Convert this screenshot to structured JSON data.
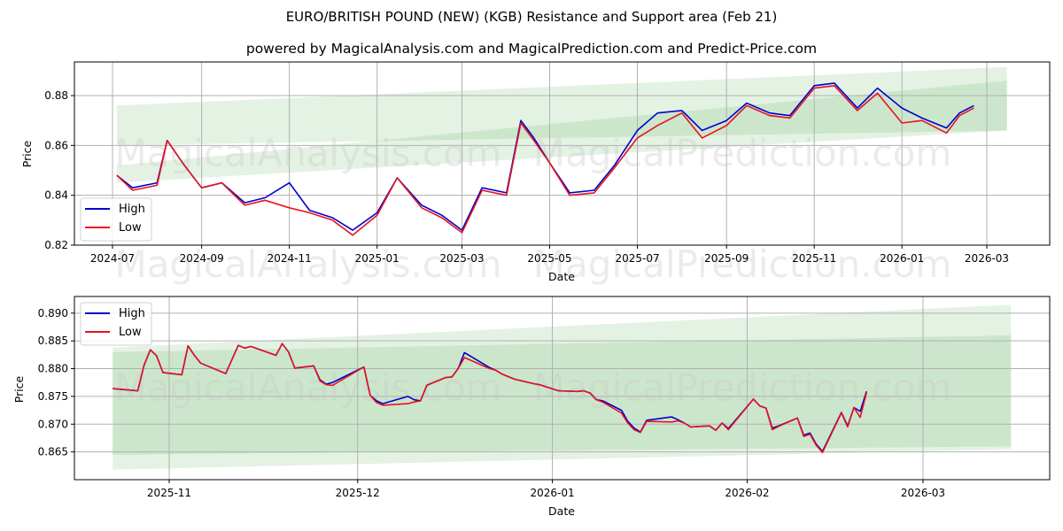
{
  "header": {
    "title": "EURO/BRITISH POUND (NEW) (KGB) Resistance and Support area (Feb 21)",
    "subtitle": "powered by MagicalAnalysis.com and MagicalPrediction.com and Predict-Price.com"
  },
  "colors": {
    "high": "#0000cc",
    "low": "#e8121e",
    "band_light": "#e3f0e3",
    "band_dark": "#c8e3c8",
    "grid": "#b0b0b0"
  },
  "watermarks": [
    "MagicalAnalysis.com",
    "MagicalPrediction.com"
  ],
  "chart_data": [
    {
      "type": "line",
      "title": "",
      "xlabel": "Date",
      "ylabel": "Price",
      "ylim": [
        0.82,
        0.8935
      ],
      "yticks": [
        "0.82",
        "0.84",
        "0.86",
        "0.88"
      ],
      "xticks": [
        "2024-07",
        "2024-09",
        "2024-11",
        "2025-01",
        "2025-03",
        "2025-05",
        "2025-07",
        "2025-09",
        "2025-11",
        "2026-01",
        "2026-03"
      ],
      "grid": true,
      "legend": {
        "position": "lower left",
        "entries": [
          "High",
          "Low"
        ]
      },
      "bands": [
        {
          "name": "resistance",
          "x_start": "2024-07-04",
          "x_end": "2026-03-15",
          "top": [
            0.876,
            0.8915
          ],
          "bottom": [
            0.86,
            0.866
          ]
        },
        {
          "name": "support",
          "x_start": "2024-07-04",
          "x_end": "2026-03-15",
          "top": [
            0.852,
            0.886
          ],
          "bottom": [
            0.845,
            0.866
          ]
        }
      ],
      "x": [
        "2024-07-04",
        "2024-07-15",
        "2024-08-01",
        "2024-08-08",
        "2024-08-20",
        "2024-09-01",
        "2024-09-15",
        "2024-10-01",
        "2024-10-15",
        "2024-11-01",
        "2024-11-15",
        "2024-12-01",
        "2024-12-15",
        "2025-01-01",
        "2025-01-15",
        "2025-02-01",
        "2025-02-15",
        "2025-03-01",
        "2025-03-15",
        "2025-04-01",
        "2025-04-11",
        "2025-04-20",
        "2025-05-01",
        "2025-05-15",
        "2025-06-01",
        "2025-06-15",
        "2025-07-01",
        "2025-07-15",
        "2025-08-01",
        "2025-08-15",
        "2025-09-01",
        "2025-09-15",
        "2025-10-01",
        "2025-10-15",
        "2025-11-01",
        "2025-11-15",
        "2025-12-01",
        "2025-12-15",
        "2026-01-01",
        "2026-01-15",
        "2026-02-01",
        "2026-02-10",
        "2026-02-20"
      ],
      "series": [
        {
          "name": "High",
          "values": [
            0.848,
            0.843,
            0.845,
            0.862,
            0.852,
            0.843,
            0.845,
            0.837,
            0.839,
            0.845,
            0.834,
            0.831,
            0.826,
            0.833,
            0.847,
            0.836,
            0.832,
            0.826,
            0.843,
            0.841,
            0.87,
            0.863,
            0.853,
            0.841,
            0.842,
            0.852,
            0.866,
            0.873,
            0.874,
            0.866,
            0.87,
            0.877,
            0.873,
            0.872,
            0.884,
            0.885,
            0.875,
            0.883,
            0.875,
            0.871,
            0.867,
            0.873,
            0.876
          ]
        },
        {
          "name": "Low",
          "values": [
            0.848,
            0.842,
            0.844,
            0.862,
            0.852,
            0.843,
            0.845,
            0.836,
            0.838,
            0.835,
            0.833,
            0.83,
            0.824,
            0.832,
            0.847,
            0.835,
            0.831,
            0.825,
            0.842,
            0.84,
            0.869,
            0.862,
            0.853,
            0.84,
            0.841,
            0.851,
            0.863,
            0.868,
            0.873,
            0.863,
            0.868,
            0.876,
            0.872,
            0.871,
            0.883,
            0.884,
            0.874,
            0.881,
            0.869,
            0.87,
            0.865,
            0.872,
            0.875
          ]
        }
      ]
    },
    {
      "type": "line",
      "title": "",
      "xlabel": "Date",
      "ylabel": "Price",
      "ylim": [
        0.86,
        0.893
      ],
      "yticks": [
        "0.865",
        "0.870",
        "0.875",
        "0.880",
        "0.885",
        "0.890"
      ],
      "xticks": [
        "2025-11",
        "2025-12",
        "2026-01",
        "2026-02",
        "2026-03"
      ],
      "grid": true,
      "legend": {
        "position": "upper left",
        "entries": [
          "High",
          "Low"
        ]
      },
      "bands": [
        {
          "name": "resistance",
          "x_start": "2025-10-23",
          "x_end": "2026-03-15",
          "top": [
            0.8838,
            0.8915
          ],
          "bottom": [
            0.8618,
            0.8655
          ]
        },
        {
          "name": "support",
          "x_start": "2025-10-23",
          "x_end": "2026-03-15",
          "top": [
            0.883,
            0.886
          ],
          "bottom": [
            0.8645,
            0.866
          ]
        }
      ],
      "x": [
        "2025-10-23",
        "2025-10-27",
        "2025-10-28",
        "2025-10-29",
        "2025-10-30",
        "2025-10-31",
        "2025-11-03",
        "2025-11-04",
        "2025-11-05",
        "2025-11-06",
        "2025-11-10",
        "2025-11-12",
        "2025-11-13",
        "2025-11-14",
        "2025-11-18",
        "2025-11-19",
        "2025-11-20",
        "2025-11-21",
        "2025-11-24",
        "2025-11-25",
        "2025-11-26",
        "2025-11-27",
        "2025-12-02",
        "2025-12-03",
        "2025-12-04",
        "2025-12-05",
        "2025-12-09",
        "2025-12-10",
        "2025-12-11",
        "2025-12-12",
        "2025-12-15",
        "2025-12-16",
        "2025-12-17",
        "2025-12-18",
        "2025-12-22",
        "2025-12-23",
        "2025-12-24",
        "2025-12-26",
        "2025-12-29",
        "2025-12-30",
        "2026-01-02",
        "2026-01-05",
        "2026-01-06",
        "2026-01-07",
        "2026-01-08",
        "2026-01-09",
        "2026-01-12",
        "2026-01-13",
        "2026-01-14",
        "2026-01-15",
        "2026-01-16",
        "2026-01-20",
        "2026-01-21",
        "2026-01-22",
        "2026-01-23",
        "2026-01-26",
        "2026-01-27",
        "2026-01-28",
        "2026-01-29",
        "2026-02-02",
        "2026-02-03",
        "2026-02-04",
        "2026-02-05",
        "2026-02-06",
        "2026-02-09",
        "2026-02-10",
        "2026-02-11",
        "2026-02-12",
        "2026-02-13",
        "2026-02-16",
        "2026-02-17",
        "2026-02-18",
        "2026-02-19",
        "2026-02-20"
      ],
      "series": [
        {
          "name": "High",
          "values": [
            0.8764,
            0.876,
            0.8806,
            0.8834,
            0.8823,
            0.8793,
            0.8789,
            0.8841,
            0.8824,
            0.881,
            0.8791,
            0.8842,
            0.8837,
            0.884,
            0.8824,
            0.8845,
            0.883,
            0.8801,
            0.8805,
            0.878,
            0.8772,
            0.8775,
            0.8803,
            0.8752,
            0.8742,
            0.8737,
            0.875,
            0.8744,
            0.8742,
            0.877,
            0.8784,
            0.8785,
            0.88,
            0.8829,
            0.8802,
            0.8797,
            0.879,
            0.8781,
            0.8773,
            0.8771,
            0.876,
            0.8759,
            0.876,
            0.8756,
            0.8744,
            0.8742,
            0.8725,
            0.8705,
            0.8693,
            0.8686,
            0.8707,
            0.8713,
            0.8708,
            0.8702,
            0.8695,
            0.8697,
            0.8689,
            0.8702,
            0.8692,
            0.8745,
            0.8733,
            0.8729,
            0.8693,
            0.8697,
            0.8711,
            0.868,
            0.8684,
            0.8664,
            0.8651,
            0.8721,
            0.8697,
            0.873,
            0.8723,
            0.8759
          ]
        },
        {
          "name": "Low",
          "values": [
            0.8764,
            0.876,
            0.8806,
            0.8834,
            0.8823,
            0.8793,
            0.8789,
            0.8841,
            0.8824,
            0.881,
            0.8791,
            0.8842,
            0.8837,
            0.884,
            0.8824,
            0.8845,
            0.883,
            0.8801,
            0.8805,
            0.8778,
            0.8771,
            0.877,
            0.8803,
            0.8752,
            0.8739,
            0.8734,
            0.8737,
            0.874,
            0.8742,
            0.877,
            0.8784,
            0.8785,
            0.88,
            0.882,
            0.88,
            0.8797,
            0.879,
            0.8781,
            0.8773,
            0.8771,
            0.876,
            0.8759,
            0.876,
            0.8756,
            0.8744,
            0.874,
            0.872,
            0.8702,
            0.869,
            0.8685,
            0.8705,
            0.8704,
            0.8706,
            0.8702,
            0.8695,
            0.8697,
            0.8689,
            0.8702,
            0.869,
            0.8745,
            0.8733,
            0.8729,
            0.869,
            0.8696,
            0.8711,
            0.8678,
            0.8682,
            0.8662,
            0.8649,
            0.872,
            0.8695,
            0.873,
            0.8712,
            0.8757
          ]
        }
      ]
    }
  ]
}
